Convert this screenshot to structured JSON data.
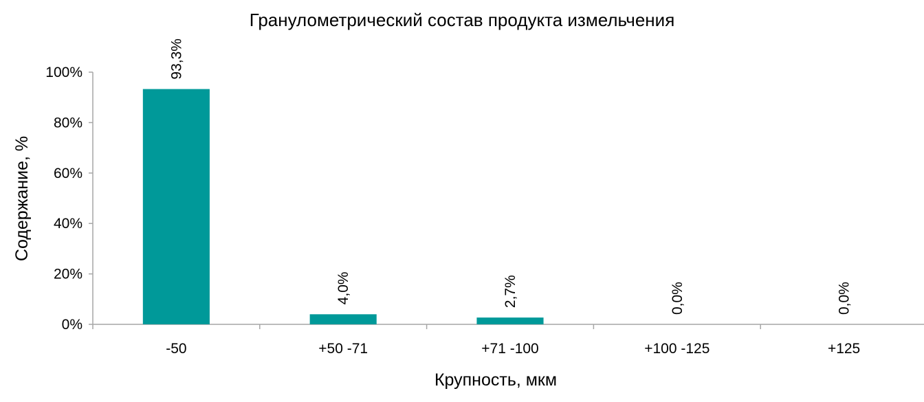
{
  "chart_data": {
    "type": "bar",
    "title": "Гранулометрический состав продукта измельчения",
    "xlabel": "Крупность, мкм",
    "ylabel": "Содержание, %",
    "categories": [
      "-50",
      "+50 -71",
      "+71 -100",
      "+100 -125",
      "+125"
    ],
    "values": [
      93.3,
      4.0,
      2.7,
      0.0,
      0.0
    ],
    "data_labels": [
      "93,3%",
      "4,0%",
      "2,7%",
      "0,0%",
      "0,0%"
    ],
    "ylim": [
      0,
      100
    ],
    "y_ticks": [
      0,
      20,
      40,
      60,
      80,
      100
    ],
    "y_tick_labels": [
      "0%",
      "20%",
      "40%",
      "60%",
      "80%",
      "100%"
    ],
    "grid": false,
    "legend": "none",
    "bar_color": "#009999"
  }
}
